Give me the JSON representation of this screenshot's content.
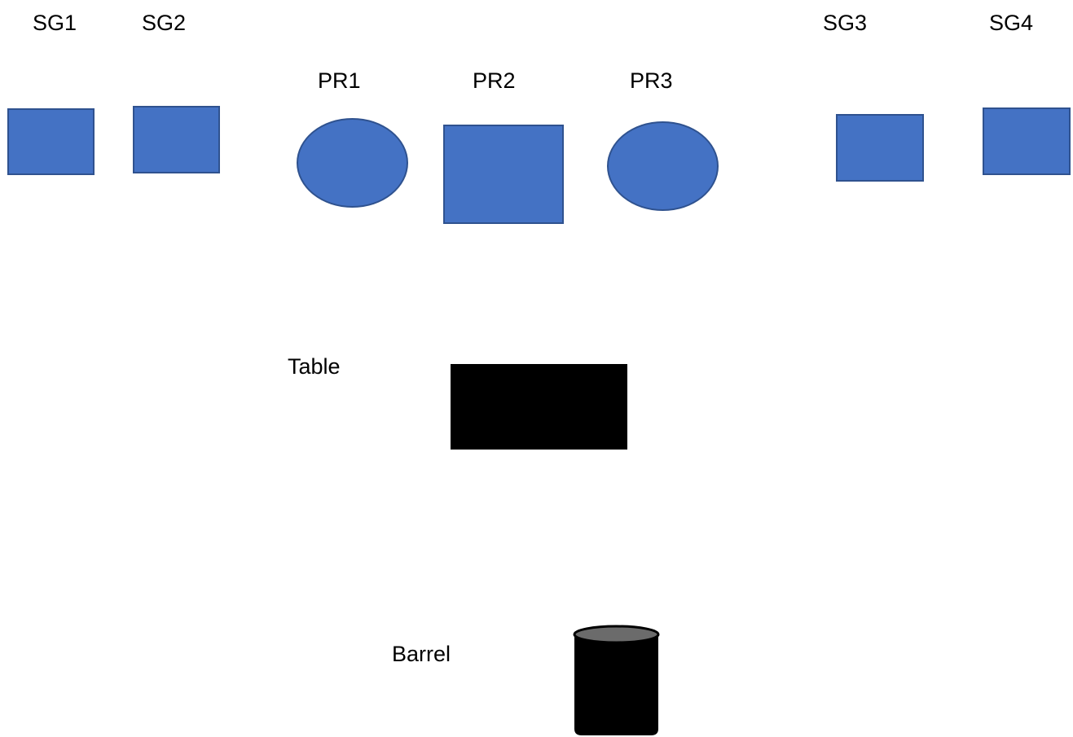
{
  "labels": {
    "sg1": "SG1",
    "sg2": "SG2",
    "sg3": "SG3",
    "sg4": "SG4",
    "pr1": "PR1",
    "pr2": "PR2",
    "pr3": "PR3",
    "table": "Table",
    "barrel": "Barrel"
  },
  "colors": {
    "shape_fill": "#4472C4",
    "shape_stroke": "#2F528F",
    "table_fill": "#000000",
    "barrel_body": "#000000",
    "barrel_top": "#6b6b6b"
  }
}
